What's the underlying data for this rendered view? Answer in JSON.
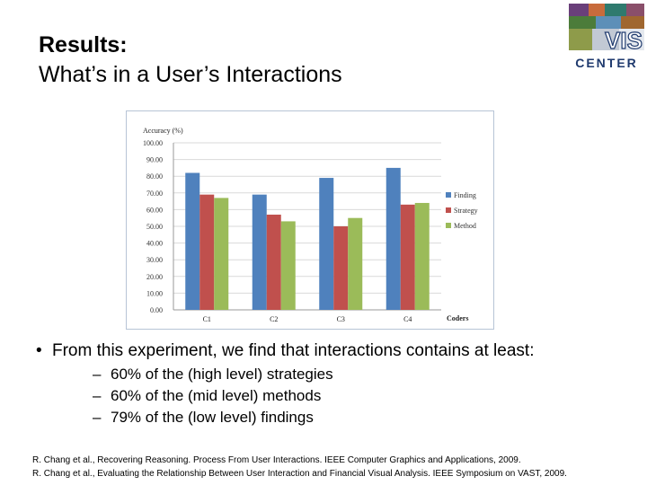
{
  "slide": {
    "title_line1": "Results:",
    "title_line2": "What’s in a User’s Interactions",
    "bullet": "From this experiment, we find that interactions contains at least:",
    "sub_bullets": [
      "60% of the (high level) strategies",
      "60% of the (mid level) methods",
      "79% of the (low level) findings"
    ],
    "references": [
      "R. Chang et al., Recovering Reasoning. Process From User Interactions. IEEE Computer Graphics and Applications, 2009.",
      "R. Chang et al., Evaluating the Relationship Between User Interaction and Financial Visual Analysis. IEEE Symposium on VAST, 2009."
    ]
  },
  "logo": {
    "text_top": "VIS",
    "text_bottom": "CENTER",
    "color": "#1f3a6e"
  },
  "colors": {
    "finding": "#4f81bd",
    "strategy": "#c0504d",
    "method": "#9bbb59",
    "grid": "#d9d9d9"
  },
  "chart_data": {
    "type": "bar",
    "ylabel": "Accuracy (%)",
    "xlabel": "Coders",
    "categories": [
      "C1",
      "C2",
      "C3",
      "C4"
    ],
    "series": [
      {
        "name": "Finding",
        "values": [
          82,
          69,
          79,
          85
        ]
      },
      {
        "name": "Strategy",
        "values": [
          69,
          57,
          50,
          63
        ]
      },
      {
        "name": "Method",
        "values": [
          67,
          53,
          55,
          64
        ]
      }
    ],
    "ylim": [
      0,
      100
    ],
    "yticks": [
      "0.00",
      "10.00",
      "20.00",
      "30.00",
      "40.00",
      "50.00",
      "60.00",
      "70.00",
      "80.00",
      "90.00",
      "100.00"
    ],
    "grid": true,
    "legend": "right"
  }
}
